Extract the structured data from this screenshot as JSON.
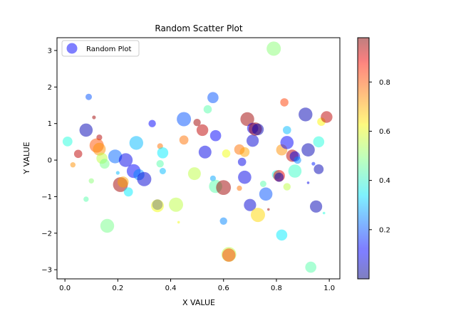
{
  "chart_data": {
    "type": "scatter",
    "title": "Random Scatter Plot",
    "xlabel": "X VALUE",
    "ylabel": "Y VALUE",
    "xlim": [
      -0.03,
      1.04
    ],
    "ylim": [
      -3.25,
      3.35
    ],
    "xticks": [
      "0.0",
      "0.2",
      "0.4",
      "0.6",
      "0.8",
      "1.0"
    ],
    "xtick_values": [
      0.0,
      0.2,
      0.4,
      0.6,
      0.8,
      1.0
    ],
    "yticks": [
      "−3",
      "−2",
      "−1",
      "0",
      "1",
      "2",
      "3"
    ],
    "ytick_values": [
      -3,
      -2,
      -1,
      0,
      1,
      2,
      3
    ],
    "legend": {
      "label": "Random Plot",
      "placement": "upper-left"
    },
    "colorbar": {
      "colormap": "jet",
      "alpha": 0.5,
      "range": [
        0.0,
        0.98
      ],
      "ticks": [
        "0.2",
        "0.4",
        "0.6",
        "0.8"
      ],
      "tick_values": [
        0.2,
        0.4,
        0.6,
        0.8
      ]
    },
    "grid": false,
    "series": [
      {
        "marker": "circle",
        "alpha": 0.5,
        "points": [
          {
            "x": 0.09,
            "y": 1.73,
            "c": 0.2,
            "size": 30
          },
          {
            "x": 0.08,
            "y": 0.82,
            "c": 0.05,
            "size": 130
          },
          {
            "x": 0.01,
            "y": 0.51,
            "c": 0.4,
            "size": 70
          },
          {
            "x": 0.05,
            "y": 0.17,
            "c": 0.92,
            "size": 50
          },
          {
            "x": 0.03,
            "y": -0.13,
            "c": 0.72,
            "size": 20
          },
          {
            "x": 0.11,
            "y": 1.17,
            "c": 0.95,
            "size": 10
          },
          {
            "x": 0.13,
            "y": 0.62,
            "c": 0.93,
            "size": 25
          },
          {
            "x": 0.12,
            "y": 0.4,
            "c": 0.78,
            "size": 150
          },
          {
            "x": 0.13,
            "y": 0.3,
            "c": 0.72,
            "size": 120
          },
          {
            "x": 0.14,
            "y": 0.05,
            "c": 0.55,
            "size": 90
          },
          {
            "x": 0.15,
            "y": -0.1,
            "c": 0.48,
            "size": 70
          },
          {
            "x": 0.1,
            "y": -0.57,
            "c": 0.5,
            "size": 20
          },
          {
            "x": 0.08,
            "y": -1.07,
            "c": 0.45,
            "size": 20
          },
          {
            "x": 0.16,
            "y": -1.8,
            "c": 0.48,
            "size": 140
          },
          {
            "x": 0.19,
            "y": 0.1,
            "c": 0.22,
            "size": 140
          },
          {
            "x": 0.2,
            "y": -0.35,
            "c": 0.3,
            "size": 10
          },
          {
            "x": 0.21,
            "y": -0.67,
            "c": 0.95,
            "size": 160
          },
          {
            "x": 0.22,
            "y": -0.6,
            "c": 0.7,
            "size": 90
          },
          {
            "x": 0.23,
            "y": 0.0,
            "c": 0.1,
            "size": 140
          },
          {
            "x": 0.24,
            "y": -0.87,
            "c": 0.35,
            "size": 60
          },
          {
            "x": 0.26,
            "y": -0.3,
            "c": 0.12,
            "size": 140
          },
          {
            "x": 0.27,
            "y": 0.47,
            "c": 0.3,
            "size": 140
          },
          {
            "x": 0.28,
            "y": -0.4,
            "c": 0.25,
            "size": 90
          },
          {
            "x": 0.3,
            "y": -0.52,
            "c": 0.08,
            "size": 150
          },
          {
            "x": 0.33,
            "y": 1.0,
            "c": 0.12,
            "size": 40
          },
          {
            "x": 0.35,
            "y": -1.22,
            "c": 0.1,
            "size": 80
          },
          {
            "x": 0.35,
            "y": -1.25,
            "c": 0.6,
            "size": 120
          },
          {
            "x": 0.36,
            "y": 0.38,
            "c": 0.75,
            "size": 25
          },
          {
            "x": 0.36,
            "y": -0.1,
            "c": 0.45,
            "size": 40
          },
          {
            "x": 0.37,
            "y": -0.3,
            "c": 0.3,
            "size": 30
          },
          {
            "x": 0.37,
            "y": 0.2,
            "c": 0.35,
            "size": 90
          },
          {
            "x": 0.42,
            "y": -1.22,
            "c": 0.55,
            "size": 150
          },
          {
            "x": 0.43,
            "y": -1.7,
            "c": 0.6,
            "size": 5
          },
          {
            "x": 0.45,
            "y": 1.12,
            "c": 0.2,
            "size": 150
          },
          {
            "x": 0.45,
            "y": 0.55,
            "c": 0.75,
            "size": 60
          },
          {
            "x": 0.49,
            "y": -0.37,
            "c": 0.55,
            "size": 120
          },
          {
            "x": 0.5,
            "y": 1.03,
            "c": 0.95,
            "size": 40
          },
          {
            "x": 0.52,
            "y": 0.82,
            "c": 0.92,
            "size": 100
          },
          {
            "x": 0.53,
            "y": 0.22,
            "c": 0.1,
            "size": 120
          },
          {
            "x": 0.54,
            "y": 1.39,
            "c": 0.45,
            "size": 50
          },
          {
            "x": 0.56,
            "y": 1.71,
            "c": 0.2,
            "size": 90
          },
          {
            "x": 0.56,
            "y": -0.5,
            "c": 0.28,
            "size": 25
          },
          {
            "x": 0.57,
            "y": -0.72,
            "c": 0.45,
            "size": 130
          },
          {
            "x": 0.57,
            "y": 0.67,
            "c": 0.12,
            "size": 90
          },
          {
            "x": 0.6,
            "y": -0.75,
            "c": 0.95,
            "size": 160
          },
          {
            "x": 0.6,
            "y": -1.67,
            "c": 0.25,
            "size": 40
          },
          {
            "x": 0.61,
            "y": 0.18,
            "c": 0.6,
            "size": 50
          },
          {
            "x": 0.62,
            "y": -2.58,
            "c": 0.55,
            "size": 160
          },
          {
            "x": 0.62,
            "y": -2.6,
            "c": 0.8,
            "size": 130
          },
          {
            "x": 0.66,
            "y": 0.29,
            "c": 0.75,
            "size": 80
          },
          {
            "x": 0.67,
            "y": -0.05,
            "c": 0.1,
            "size": 50
          },
          {
            "x": 0.68,
            "y": 0.22,
            "c": 0.7,
            "size": 70
          },
          {
            "x": 0.66,
            "y": -0.77,
            "c": 0.75,
            "size": 20
          },
          {
            "x": 0.69,
            "y": 1.12,
            "c": 0.95,
            "size": 140
          },
          {
            "x": 0.68,
            "y": -0.47,
            "c": 0.1,
            "size": 130
          },
          {
            "x": 0.7,
            "y": -1.23,
            "c": 0.08,
            "size": 110
          },
          {
            "x": 0.71,
            "y": 0.87,
            "c": 0.12,
            "size": 90
          },
          {
            "x": 0.71,
            "y": 0.53,
            "c": 0.08,
            "size": 110
          },
          {
            "x": 0.72,
            "y": 0.85,
            "c": 0.95,
            "size": 130
          },
          {
            "x": 0.73,
            "y": 0.84,
            "c": 0.05,
            "size": 100
          },
          {
            "x": 0.73,
            "y": -1.5,
            "c": 0.65,
            "size": 150
          },
          {
            "x": 0.75,
            "y": -0.65,
            "c": 0.45,
            "size": 30
          },
          {
            "x": 0.76,
            "y": -0.93,
            "c": 0.2,
            "size": 130
          },
          {
            "x": 0.77,
            "y": -1.35,
            "c": 0.95,
            "size": 5
          },
          {
            "x": 0.79,
            "y": 3.05,
            "c": 0.5,
            "size": 150
          },
          {
            "x": 0.8,
            "y": -0.4,
            "c": 0.4,
            "size": 60
          },
          {
            "x": 0.81,
            "y": -0.43,
            "c": 0.88,
            "size": 100
          },
          {
            "x": 0.81,
            "y": -0.47,
            "c": 0.05,
            "size": 60
          },
          {
            "x": 0.82,
            "y": 0.28,
            "c": 0.72,
            "size": 90
          },
          {
            "x": 0.82,
            "y": -2.05,
            "c": 0.35,
            "size": 90
          },
          {
            "x": 0.83,
            "y": 1.58,
            "c": 0.8,
            "size": 50
          },
          {
            "x": 0.84,
            "y": 0.82,
            "c": 0.3,
            "size": 50
          },
          {
            "x": 0.84,
            "y": 0.48,
            "c": 0.12,
            "size": 130
          },
          {
            "x": 0.84,
            "y": -0.73,
            "c": 0.55,
            "size": 40
          },
          {
            "x": 0.86,
            "y": 0.12,
            "c": 0.92,
            "size": 110
          },
          {
            "x": 0.87,
            "y": -0.3,
            "c": 0.42,
            "size": 130
          },
          {
            "x": 0.87,
            "y": 0.1,
            "c": 0.1,
            "size": 80
          },
          {
            "x": 0.88,
            "y": 0.0,
            "c": 0.25,
            "size": 40
          },
          {
            "x": 0.91,
            "y": 1.25,
            "c": 0.05,
            "size": 140
          },
          {
            "x": 0.92,
            "y": 0.28,
            "c": 0.05,
            "size": 130
          },
          {
            "x": 0.92,
            "y": -0.62,
            "c": 0.1,
            "size": 5
          },
          {
            "x": 0.93,
            "y": -2.93,
            "c": 0.45,
            "size": 90
          },
          {
            "x": 0.94,
            "y": -0.1,
            "c": 0.15,
            "size": 10
          },
          {
            "x": 0.95,
            "y": -1.27,
            "c": 0.05,
            "size": 110
          },
          {
            "x": 0.96,
            "y": 0.5,
            "c": 0.4,
            "size": 90
          },
          {
            "x": 0.96,
            "y": -0.25,
            "c": 0.05,
            "size": 70
          },
          {
            "x": 0.97,
            "y": 1.05,
            "c": 0.62,
            "size": 50
          },
          {
            "x": 0.99,
            "y": 1.18,
            "c": 0.92,
            "size": 100
          },
          {
            "x": 0.98,
            "y": -1.45,
            "c": 0.4,
            "size": 5
          }
        ]
      }
    ]
  }
}
